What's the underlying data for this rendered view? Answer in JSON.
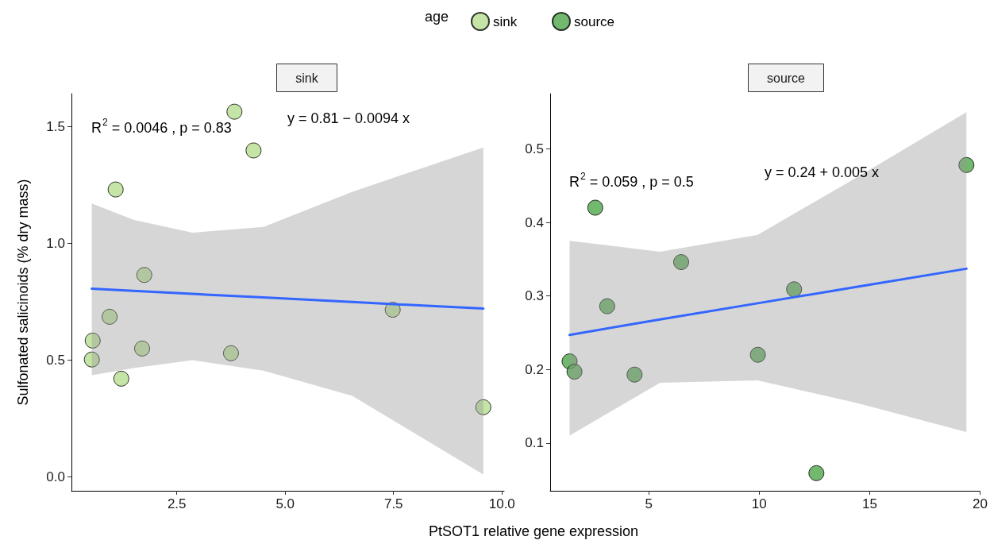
{
  "chart_data": [
    {
      "type": "scatter",
      "title": "sink",
      "ylabel": "Sulfonated salicinoids (% dry mass)",
      "xlabel": "PtSOT1 relative gene expression",
      "legend_title": "age",
      "legend": "top",
      "grid": false,
      "marker": "circle",
      "xlim": [
        0.07,
        10.05
      ],
      "xticks": [
        2.5,
        {
          "value": 5,
          "label": "5.0"
        },
        7.5,
        {
          "value": 10,
          "label": "10.0"
        }
      ],
      "ylim": [
        -0.06,
        1.64
      ],
      "yticks": [
        {
          "value": 0,
          "label": "0.0"
        },
        0.5,
        {
          "value": 1,
          "label": "1.0"
        },
        1.5
      ],
      "annotations": [
        "R$^{2}$ = 0.0046 , p = 0.83",
        "y = 0.81 − 0.0094 x"
      ],
      "series": [
        {
          "name": "sink",
          "color": "#b5df8f",
          "x": [
            3.83,
            4.27,
            1.09,
            1.75,
            0.95,
            0.56,
            0.54,
            1.22,
            1.7,
            3.75,
            7.48,
            9.57
          ],
          "values": [
            1.563,
            1.397,
            1.23,
            0.864,
            0.685,
            0.583,
            0.502,
            0.42,
            0.549,
            0.529,
            0.715,
            0.298
          ]
        },
        {
          "type": "line",
          "color": "#3366ff",
          "marker": "none",
          "x": [
            0.54,
            1.5,
            2.86,
            4.5,
            6.55,
            9.57
          ],
          "values": [
            0.805,
            0.796,
            0.783,
            0.768,
            0.748,
            0.72
          ],
          "lower": [
            0.435,
            0.465,
            0.499,
            0.454,
            0.346,
            0.01
          ],
          "upper": [
            1.17,
            1.1,
            1.045,
            1.07,
            1.22,
            1.41
          ]
        }
      ]
    },
    {
      "type": "scatter",
      "title": "source",
      "legend": "top",
      "grid": false,
      "marker": "circle",
      "xlim": [
        0.54,
        20.0
      ],
      "xticks": [
        5,
        10,
        15,
        20
      ],
      "ylim": [
        0.035,
        0.575
      ],
      "yticks": [
        0.1,
        0.2,
        0.3,
        0.4,
        0.5
      ],
      "annotations": [
        "R$^{2}$ = 0.059 , p = 0.5",
        "y = 0.24 + 0.005 x"
      ],
      "series": [
        {
          "name": "source",
          "color": "#4fa64a",
          "x": [
            19.38,
            2.58,
            6.47,
            11.58,
            3.12,
            1.42,
            1.64,
            4.36,
            9.94,
            12.59
          ],
          "values": [
            0.478,
            0.42,
            0.346,
            0.309,
            0.286,
            0.211,
            0.197,
            0.193,
            0.22,
            0.059
          ]
        },
        {
          "type": "line",
          "color": "#3366ff",
          "marker": "none",
          "x": [
            1.42,
            5.51,
            9.93,
            14.35,
            19.38
          ],
          "values": [
            0.247,
            0.268,
            0.29,
            0.312,
            0.337
          ],
          "lower": [
            0.11,
            0.182,
            0.185,
            0.155,
            0.115
          ],
          "upper": [
            0.375,
            0.36,
            0.383,
            0.46,
            0.55
          ]
        }
      ]
    }
  ]
}
